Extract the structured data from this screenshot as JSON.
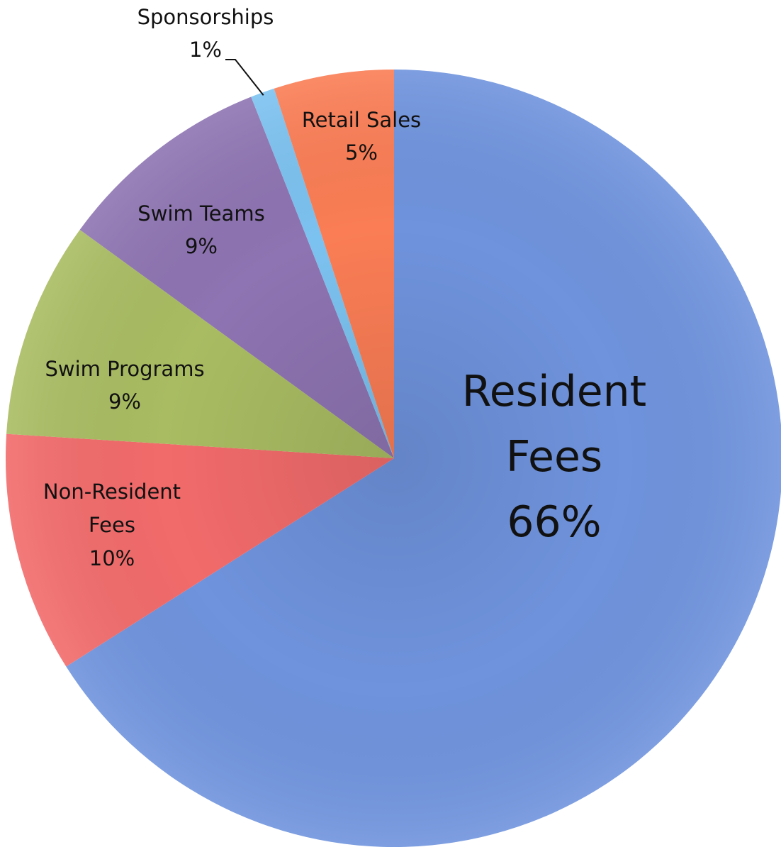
{
  "chart_data": {
    "type": "pie",
    "start": "12 o'clock",
    "direction": "clockwise",
    "slices": [
      {
        "label": "Resident Fees",
        "label_lines": [
          "Resident",
          "Fees"
        ],
        "value_text": "66%",
        "value": 66,
        "color": "#6F93DD"
      },
      {
        "label": "Non-Resident Fees",
        "label_lines": [
          "Non-Resident",
          "Fees"
        ],
        "value_text": "10%",
        "value": 10,
        "color": "#F26B6B"
      },
      {
        "label": "Swim Programs",
        "label_lines": [
          "Swim Programs"
        ],
        "value_text": "9%",
        "value": 9,
        "color": "#A9BC62"
      },
      {
        "label": "Swim Teams",
        "label_lines": [
          "Swim Teams"
        ],
        "value_text": "9%",
        "value": 9,
        "color": "#8E74B2"
      },
      {
        "label": "Sponsorships",
        "label_lines": [
          "Sponsorships"
        ],
        "value_text": "1%",
        "value": 1,
        "color": "#7CC2F0"
      },
      {
        "label": "Retail Sales",
        "label_lines": [
          "Retail Sales"
        ],
        "value_text": "5%",
        "value": 5,
        "color": "#FA7D55"
      }
    ]
  }
}
